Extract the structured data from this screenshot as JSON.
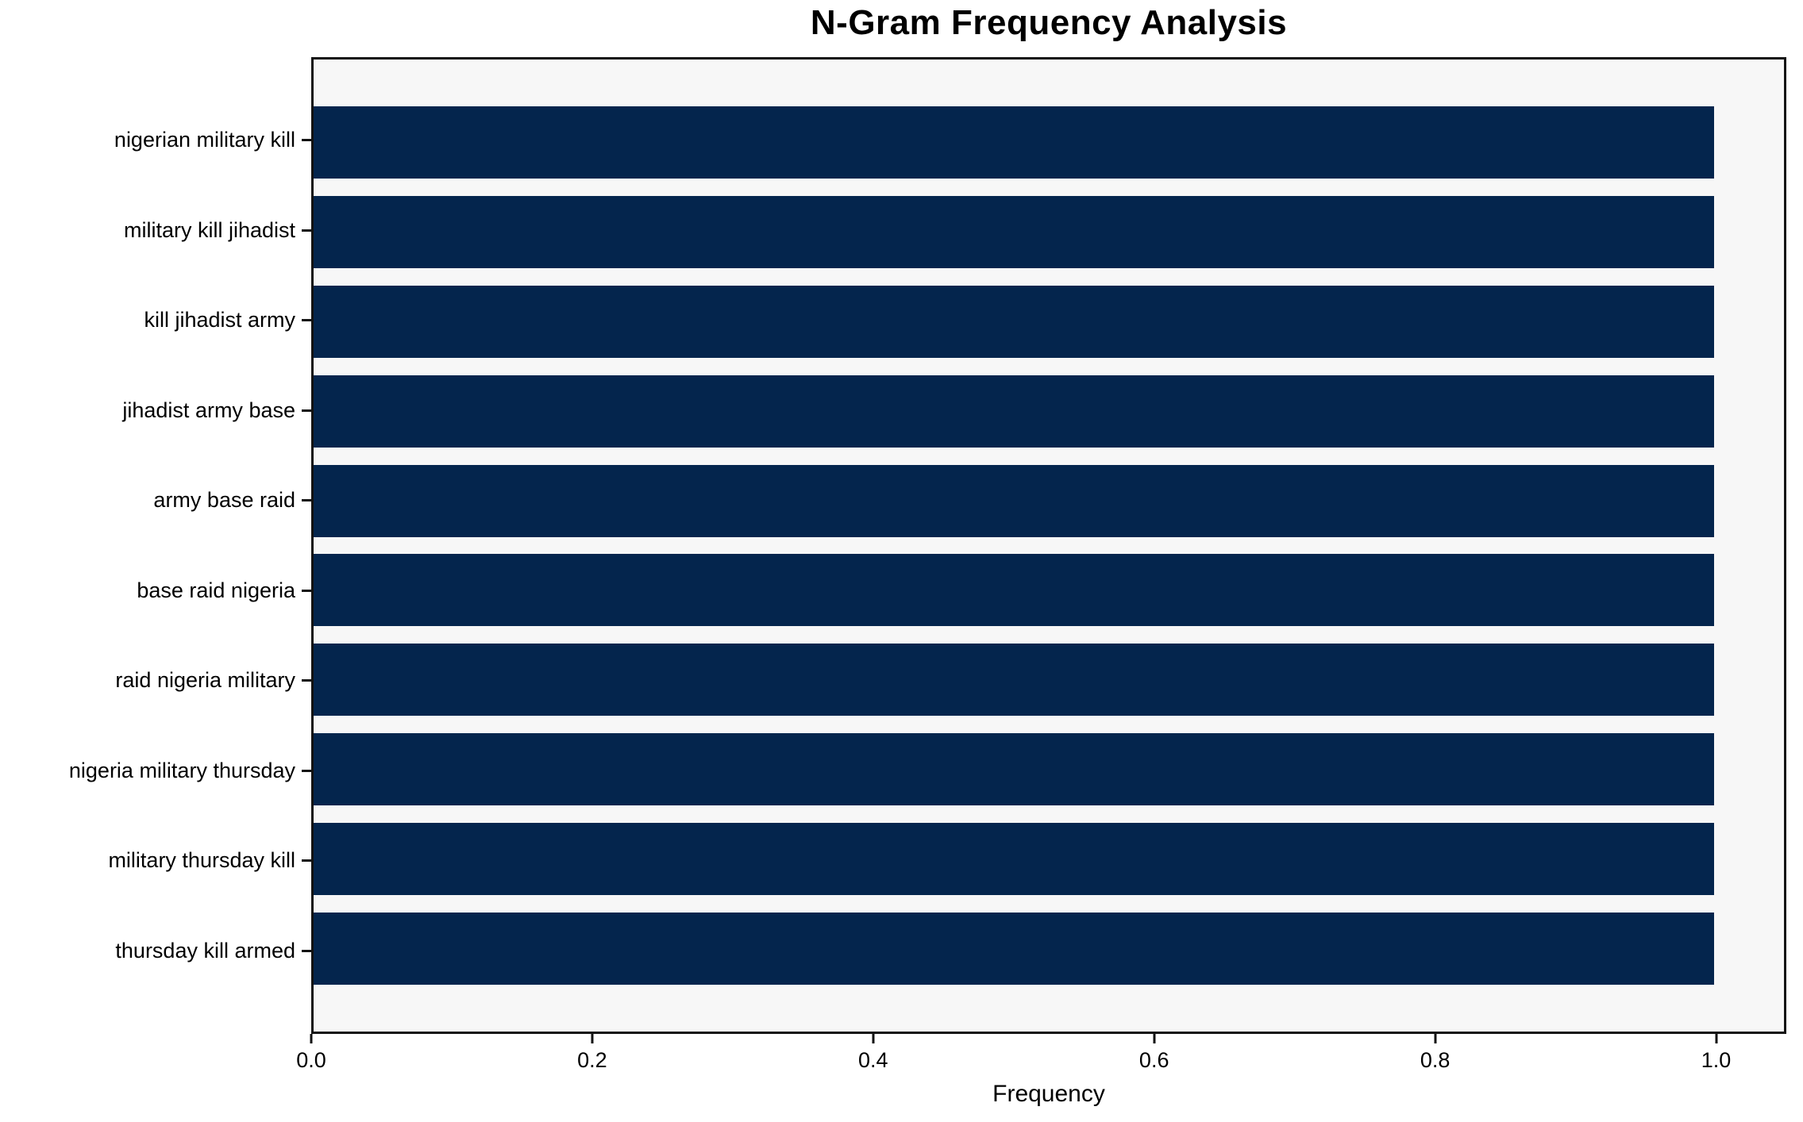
{
  "chart_data": {
    "type": "bar",
    "orientation": "horizontal",
    "title": "N-Gram Frequency Analysis",
    "xlabel": "Frequency",
    "ylabel": "",
    "categories": [
      "nigerian military kill",
      "military kill jihadist",
      "kill jihadist army",
      "jihadist army base",
      "army base raid",
      "base raid nigeria",
      "raid nigeria military",
      "nigeria military thursday",
      "military thursday kill",
      "thursday kill armed"
    ],
    "values": [
      1.0,
      1.0,
      1.0,
      1.0,
      1.0,
      1.0,
      1.0,
      1.0,
      1.0,
      1.0
    ],
    "x_ticks": [
      "0.0",
      "0.2",
      "0.4",
      "0.6",
      "0.8",
      "1.0"
    ],
    "x_tick_values": [
      0.0,
      0.2,
      0.4,
      0.6,
      0.8,
      1.0
    ],
    "xlim": [
      0,
      1.05
    ],
    "grid": false,
    "legend": null,
    "colors": {
      "bar": "#04254d",
      "plot_background": "#f7f7f7",
      "figure_background": "#ffffff",
      "spine": "#121212",
      "text": "#000000"
    }
  }
}
